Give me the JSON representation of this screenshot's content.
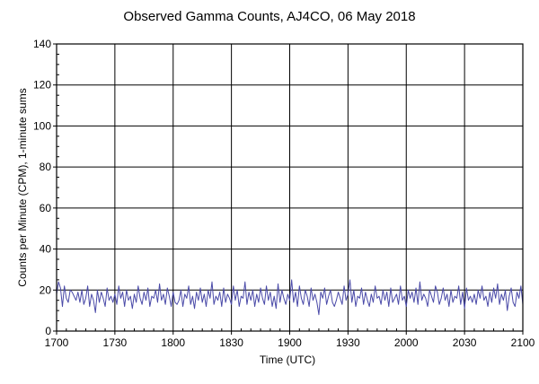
{
  "chart_data": {
    "type": "line",
    "title": "Observed Gamma Counts, AJ4CO, 06 May 2018",
    "xlabel": "Time (UTC)",
    "ylabel": "Counts per Minute (CPM), 1-minute sums",
    "x_ticks": [
      "1700",
      "1730",
      "1800",
      "1830",
      "1900",
      "1930",
      "2000",
      "2030",
      "2100"
    ],
    "y_ticks": [
      0,
      20,
      40,
      60,
      80,
      100,
      120,
      140
    ],
    "xlim_minutes": [
      0,
      240
    ],
    "ylim": [
      0,
      140
    ],
    "grid": true,
    "line_color": "#4a4aa8",
    "grid_color": "#000000",
    "series": [
      {
        "x_minutes": [
          0,
          1,
          2,
          3,
          4,
          5,
          6,
          7,
          8,
          9,
          10,
          11,
          12,
          13,
          14,
          15,
          16,
          17,
          18,
          19,
          20,
          21,
          22,
          23,
          24,
          25,
          26,
          27,
          28,
          29,
          30,
          31,
          32,
          33,
          34,
          35,
          36,
          37,
          38,
          39,
          40,
          41,
          42,
          43,
          44,
          45,
          46,
          47,
          48,
          49,
          50,
          51,
          52,
          53,
          54,
          55,
          56,
          57,
          58,
          59,
          60,
          61,
          62,
          63,
          64,
          65,
          66,
          67,
          68,
          69,
          70,
          71,
          72,
          73,
          74,
          75,
          76,
          77,
          78,
          79,
          80,
          81,
          82,
          83,
          84,
          85,
          86,
          87,
          88,
          89,
          90,
          91,
          92,
          93,
          94,
          95,
          96,
          97,
          98,
          99,
          100,
          101,
          102,
          103,
          104,
          105,
          106,
          107,
          108,
          109,
          110,
          111,
          112,
          113,
          114,
          115,
          116,
          117,
          118,
          119,
          120,
          121,
          122,
          123,
          124,
          125,
          126,
          127,
          128,
          129,
          130,
          131,
          132,
          133,
          134,
          135,
          136,
          137,
          138,
          139,
          140,
          141,
          142,
          143,
          144,
          145,
          146,
          147,
          148,
          149,
          150,
          151,
          152,
          153,
          154,
          155,
          156,
          157,
          158,
          159,
          160,
          161,
          162,
          163,
          164,
          165,
          166,
          167,
          168,
          169,
          170,
          171,
          172,
          173,
          174,
          175,
          176,
          177,
          178,
          179,
          180,
          181,
          182,
          183,
          184,
          185,
          186,
          187,
          188,
          189,
          190,
          191,
          192,
          193,
          194,
          195,
          196,
          197,
          198,
          199,
          200,
          201,
          202,
          203,
          204,
          205,
          206,
          207,
          208,
          209,
          210,
          211,
          212,
          213,
          214,
          215,
          216,
          217,
          218,
          219,
          220,
          221,
          222,
          223,
          224,
          225,
          226,
          227,
          228,
          229,
          230,
          231,
          232,
          233,
          234,
          235,
          236,
          237,
          238,
          239,
          240
        ],
        "values": [
          18,
          24,
          21,
          12,
          22,
          16,
          14,
          20,
          19,
          17,
          15,
          19,
          14,
          20,
          13,
          16,
          22,
          12,
          18,
          15,
          9,
          20,
          14,
          19,
          16,
          12,
          21,
          15,
          17,
          14,
          18,
          13,
          22,
          16,
          19,
          12,
          20,
          15,
          17,
          11,
          18,
          14,
          22,
          16,
          13,
          19,
          15,
          21,
          12,
          17,
          16,
          20,
          14,
          23,
          15,
          18,
          13,
          21,
          17,
          12,
          19,
          14,
          13,
          15,
          20,
          12,
          18,
          16,
          22,
          13,
          17,
          11,
          19,
          15,
          21,
          14,
          18,
          12,
          20,
          16,
          24,
          13,
          17,
          15,
          19,
          12,
          21,
          14,
          18,
          16,
          13,
          22,
          15,
          20,
          12,
          17,
          16,
          24,
          13,
          19,
          15,
          20,
          12,
          18,
          14,
          21,
          16,
          13,
          22,
          15,
          19,
          12,
          17,
          11,
          23,
          14,
          20,
          16,
          13,
          18,
          15,
          25,
          14,
          19,
          12,
          22,
          16,
          13,
          20,
          17,
          12,
          21,
          15,
          18,
          14,
          8,
          19,
          16,
          21,
          13,
          17,
          20,
          14,
          12,
          15,
          19,
          16,
          13,
          22,
          15,
          18,
          25,
          14,
          20,
          12,
          17,
          16,
          21,
          13,
          19,
          15,
          12,
          18,
          14,
          22,
          16,
          17,
          13,
          20,
          15,
          19,
          12,
          21,
          14,
          16,
          18,
          13,
          22,
          15,
          17,
          12,
          20,
          16,
          19,
          14,
          21,
          13,
          24,
          15,
          18,
          16,
          12,
          20,
          17,
          14,
          22,
          19,
          13,
          16,
          21,
          15,
          18,
          12,
          20,
          14,
          17,
          16,
          22,
          13,
          19,
          11,
          21,
          15,
          17,
          14,
          18,
          13,
          20,
          16,
          22,
          15,
          17,
          12,
          19,
          14,
          21,
          16,
          23,
          13,
          18,
          15,
          20,
          10,
          17,
          21,
          14,
          12,
          19,
          16,
          22,
          13
        ]
      }
    ]
  }
}
